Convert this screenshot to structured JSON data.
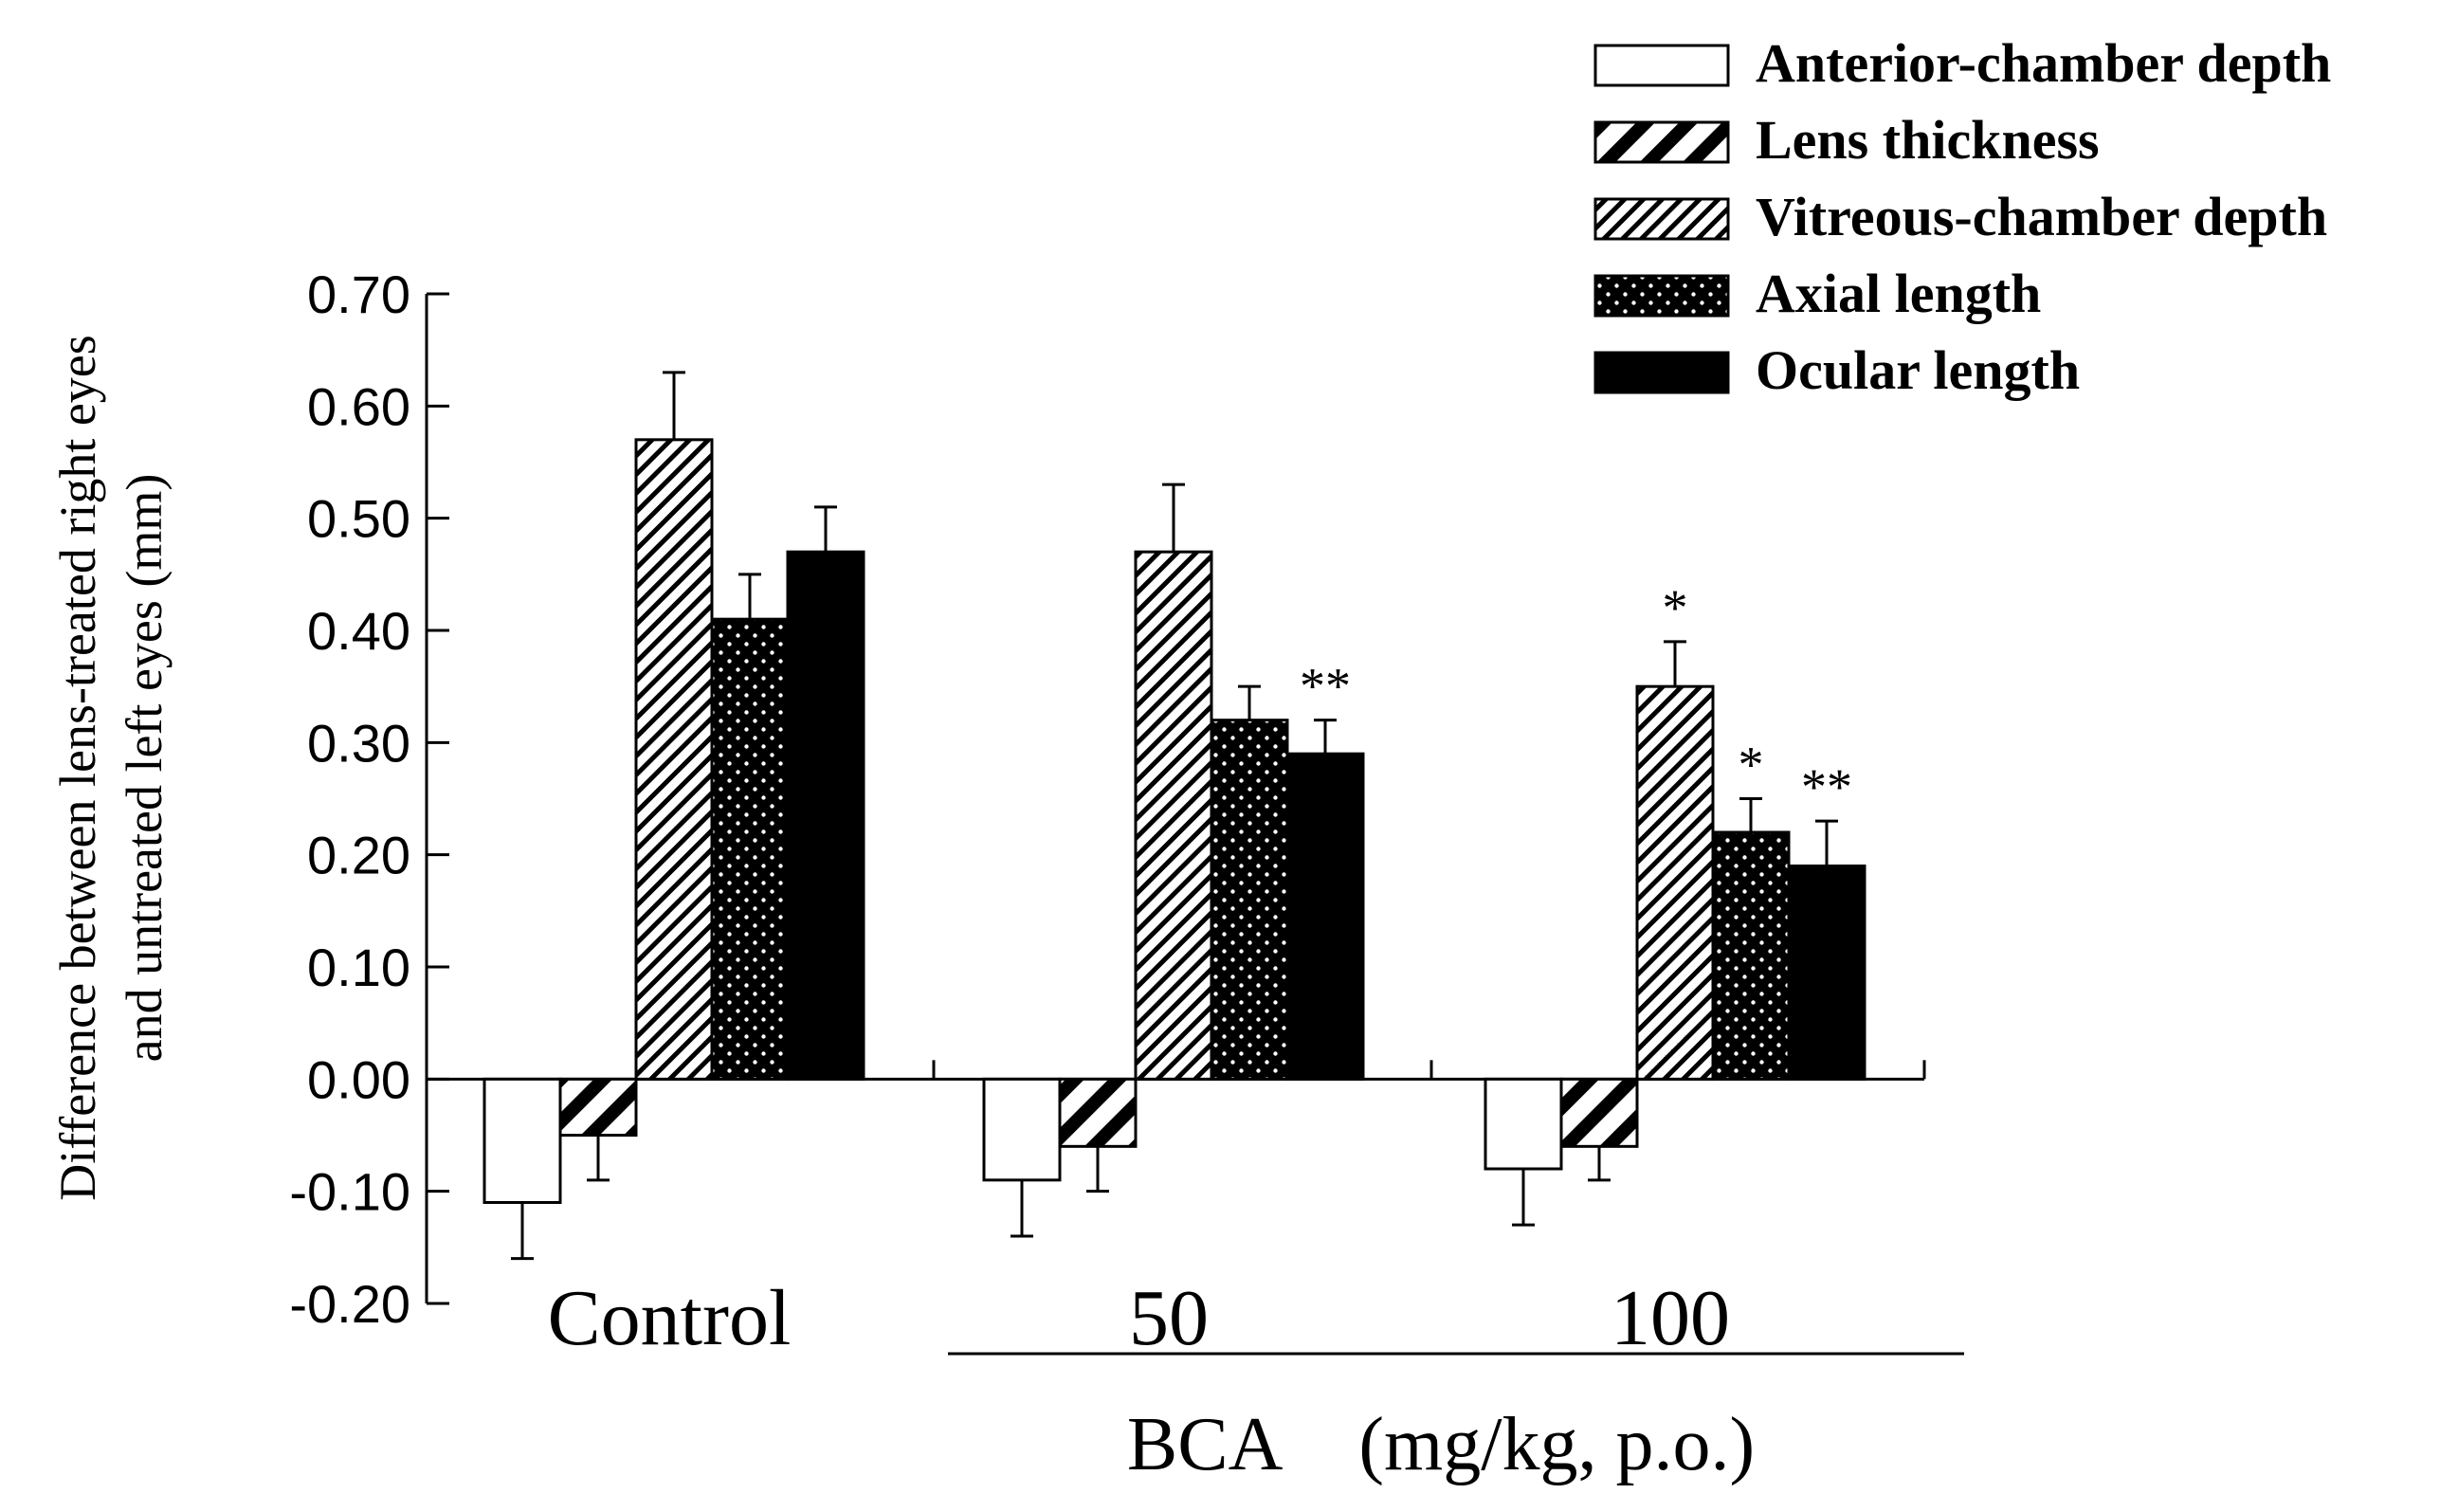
{
  "chart_data": {
    "type": "bar",
    "title": "",
    "xlabel": "",
    "ylabel": [
      "Difference between lens-treated right eyes",
      "and untreated left eyes (mm)"
    ],
    "ylim": [
      -0.2,
      0.7
    ],
    "yticks": [
      0.7,
      0.6,
      0.5,
      0.4,
      0.3,
      0.2,
      0.1,
      0.0,
      -0.1,
      -0.2
    ],
    "ytick_labels": [
      "0.70",
      "0.60",
      "0.50",
      "0.40",
      "0.30",
      "0.20",
      "0.10",
      "0.00",
      "-0.10",
      "-0.20"
    ],
    "categories": [
      "Control",
      "50",
      "100"
    ],
    "group_label": "BCA (mg/kg, p.o.)",
    "legend_position": "top-right",
    "series": [
      {
        "name": "Anterior-chamber depth",
        "pattern": "white",
        "values": [
          -0.11,
          -0.09,
          -0.08
        ],
        "errors": [
          0.05,
          0.05,
          0.05
        ],
        "significance": [
          "",
          "",
          ""
        ]
      },
      {
        "name": "Lens thickness",
        "pattern": "bold-hatch",
        "values": [
          -0.05,
          -0.06,
          -0.06
        ],
        "errors": [
          0.04,
          0.04,
          0.03
        ],
        "significance": [
          "",
          "",
          ""
        ]
      },
      {
        "name": "Vitreous-chamber depth",
        "pattern": "fine-hatch",
        "values": [
          0.57,
          0.47,
          0.35
        ],
        "errors": [
          0.06,
          0.06,
          0.04
        ],
        "significance": [
          "",
          "",
          "*"
        ]
      },
      {
        "name": "Axial length",
        "pattern": "dots",
        "values": [
          0.41,
          0.32,
          0.22
        ],
        "errors": [
          0.04,
          0.03,
          0.03
        ],
        "significance": [
          "",
          "",
          "*"
        ]
      },
      {
        "name": "Ocular length",
        "pattern": "solid-black",
        "values": [
          0.47,
          0.29,
          0.19
        ],
        "errors": [
          0.04,
          0.03,
          0.04
        ],
        "significance": [
          "",
          "**",
          "**"
        ]
      }
    ]
  }
}
